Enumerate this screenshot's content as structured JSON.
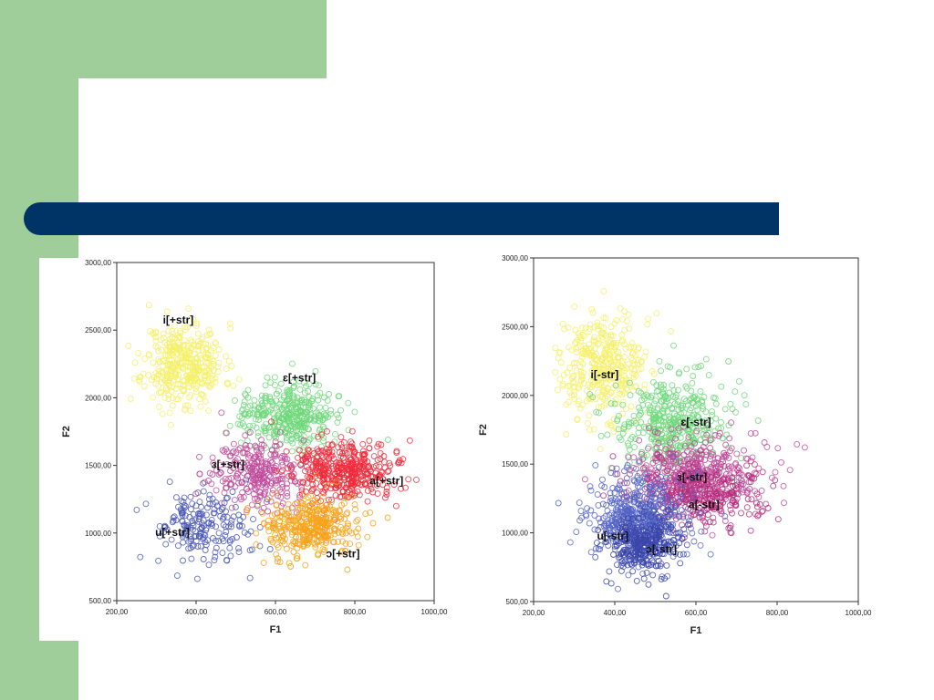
{
  "theme": {
    "bg_green": "#a0ce9a",
    "title_bar": "#003366"
  },
  "chart_data": [
    {
      "type": "scatter",
      "title": "",
      "xlabel": "F1",
      "ylabel": "F2",
      "xlim": [
        200,
        1000
      ],
      "ylim": [
        500,
        3000
      ],
      "x_ticks": [
        "200,00",
        "400,00",
        "600,00",
        "800,00",
        "1000,00"
      ],
      "y_ticks": [
        "500,00",
        "1000,00",
        "1500,00",
        "2000,00",
        "2500,00",
        "3000,00"
      ],
      "series": [
        {
          "name": "i[+str]",
          "color": "#f5f06a",
          "center": [
            370,
            2250
          ],
          "spread": [
            50,
            150
          ],
          "n": 380,
          "label_at": [
            355,
            2550
          ]
        },
        {
          "name": "ɛ[+str]",
          "color": "#6fd87a",
          "center": [
            630,
            1880
          ],
          "spread": [
            55,
            120
          ],
          "n": 380,
          "label_at": [
            660,
            2120
          ]
        },
        {
          "name": "ɜ[+str]",
          "color": "#c04a9a",
          "center": [
            560,
            1440
          ],
          "spread": [
            60,
            120
          ],
          "n": 280,
          "label_at": [
            480,
            1480
          ]
        },
        {
          "name": "a[+str]",
          "color": "#ee2b3b",
          "center": [
            775,
            1450
          ],
          "spread": [
            60,
            110
          ],
          "n": 420,
          "label_at": [
            880,
            1360
          ]
        },
        {
          "name": "u[+str]",
          "color": "#4a58b5",
          "center": [
            420,
            1050
          ],
          "spread": [
            60,
            130
          ],
          "n": 200,
          "label_at": [
            340,
            980
          ]
        },
        {
          "name": "ɔ[+str]",
          "color": "#f7a21a",
          "center": [
            690,
            1050
          ],
          "spread": [
            60,
            110
          ],
          "n": 380,
          "label_at": [
            770,
            820
          ]
        }
      ]
    },
    {
      "type": "scatter",
      "title": "",
      "xlabel": "F1",
      "ylabel": "F2",
      "xlim": [
        200,
        1000
      ],
      "ylim": [
        500,
        3000
      ],
      "x_ticks": [
        "200,00",
        "400,00",
        "600,00",
        "800,00",
        "1000,00"
      ],
      "y_ticks": [
        "500,00",
        "1000,00",
        "1500,00",
        "2000,00",
        "2500,00",
        "3000,00"
      ],
      "series": [
        {
          "name": "i[-str]",
          "color": "#f5f06a",
          "center": [
            370,
            2200
          ],
          "spread": [
            55,
            200
          ],
          "n": 380,
          "label_at": [
            375,
            2125
          ]
        },
        {
          "name": "ɛ[-str]",
          "color": "#6fd87a",
          "center": [
            540,
            1800
          ],
          "spread": [
            70,
            170
          ],
          "n": 420,
          "label_at": [
            600,
            1780
          ]
        },
        {
          "name": "ɜ[-str]",
          "color": "#c04a9a",
          "center": [
            610,
            1420
          ],
          "spread": [
            85,
            140
          ],
          "n": 420,
          "label_at": [
            590,
            1380
          ]
        },
        {
          "name": "a[-str]",
          "color": "#b52c7a",
          "center": [
            610,
            1280
          ],
          "spread": [
            75,
            120
          ],
          "n": 280,
          "label_at": [
            620,
            1180
          ]
        },
        {
          "name": "u[-str]",
          "color": "#5464c6",
          "center": [
            460,
            1100
          ],
          "spread": [
            60,
            160
          ],
          "n": 520,
          "label_at": [
            395,
            950
          ]
        },
        {
          "name": "ɔ[-str]",
          "color": "#3a45a8",
          "center": [
            470,
            920
          ],
          "spread": [
            45,
            110
          ],
          "n": 280,
          "label_at": [
            515,
            855
          ]
        }
      ]
    }
  ]
}
